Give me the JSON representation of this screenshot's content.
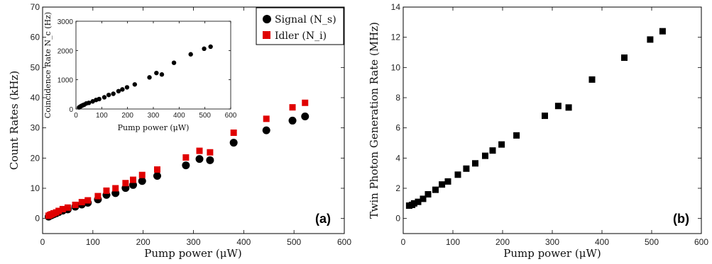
{
  "chart_data": [
    {
      "type": "scatter",
      "panel_label": "(a)",
      "xlabel": "Pump power (μW)",
      "ylabel": "Count Rates (kHz)",
      "xlim": [
        0,
        600
      ],
      "ylim": [
        -5,
        70
      ],
      "xticks": [
        0,
        100,
        200,
        300,
        400,
        500,
        600
      ],
      "yticks": [
        0,
        10,
        20,
        30,
        40,
        50,
        60,
        70
      ],
      "legend_position": "top-right",
      "series": [
        {
          "name": "Signal (N_s)",
          "marker": "circle",
          "color": "#000000",
          "x": [
            12,
            15,
            18,
            22,
            27,
            32,
            40,
            50,
            65,
            78,
            90,
            110,
            127,
            145,
            165,
            180,
            198,
            228,
            285,
            312,
            333,
            380,
            445,
            497,
            522
          ],
          "y": [
            0.6,
            0.9,
            1.1,
            1.4,
            1.7,
            2.1,
            2.6,
            3.0,
            3.9,
            4.6,
            5.2,
            6.3,
            7.8,
            8.4,
            10.1,
            11.1,
            12.4,
            14.1,
            17.6,
            19.7,
            19.3,
            25.1,
            29.2,
            32.4,
            33.8
          ]
        },
        {
          "name": "Idler (N_i)",
          "marker": "square",
          "color": "#e00000",
          "x": [
            12,
            15,
            18,
            22,
            27,
            32,
            40,
            50,
            65,
            78,
            90,
            110,
            127,
            145,
            165,
            180,
            198,
            228,
            285,
            312,
            333,
            380,
            445,
            497,
            522
          ],
          "y": [
            0.9,
            1.2,
            1.4,
            1.7,
            2.0,
            2.5,
            3.1,
            3.6,
            4.5,
            5.4,
            6.0,
            7.4,
            9.2,
            10.0,
            11.7,
            12.8,
            14.4,
            16.2,
            20.2,
            22.4,
            21.9,
            28.4,
            33.0,
            36.8,
            38.3
          ]
        }
      ],
      "inset": {
        "type": "scatter",
        "xlabel": "Pump power (μW)",
        "ylabel": "Coincidence Rate N_c (Hz)",
        "xlim": [
          0,
          600
        ],
        "ylim": [
          0,
          3000
        ],
        "xticks": [
          0,
          100,
          200,
          300,
          400,
          500,
          600
        ],
        "yticks": [
          0,
          1000,
          2000,
          3000
        ],
        "series": [
          {
            "marker": "circle",
            "color": "#000000",
            "x": [
              12,
              15,
              18,
              22,
              27,
              32,
              40,
              50,
              65,
              78,
              90,
              110,
              127,
              145,
              165,
              180,
              198,
              228,
              285,
              312,
              333,
              380,
              445,
              497,
              522
            ],
            "y": [
              55,
              70,
              90,
              110,
              130,
              150,
              190,
              210,
              260,
              310,
              340,
              400,
              480,
              520,
              610,
              670,
              740,
              840,
              1080,
              1230,
              1180,
              1580,
              1870,
              2060,
              2130
            ]
          }
        ]
      }
    },
    {
      "type": "scatter",
      "panel_label": "(b)",
      "xlabel": "Pump power (μW)",
      "ylabel": "Twin Photon Generation Rate (MHz)",
      "xlim": [
        0,
        600
      ],
      "ylim": [
        -1,
        14
      ],
      "xticks": [
        0,
        100,
        200,
        300,
        400,
        500,
        600
      ],
      "yticks": [
        0,
        2,
        4,
        6,
        8,
        10,
        12,
        14
      ],
      "series": [
        {
          "marker": "square",
          "color": "#000000",
          "x": [
            12,
            18,
            22,
            30,
            40,
            50,
            65,
            78,
            90,
            110,
            127,
            145,
            165,
            180,
            198,
            228,
            285,
            312,
            333,
            380,
            445,
            497,
            522
          ],
          "y": [
            0.85,
            0.9,
            1.0,
            1.1,
            1.3,
            1.6,
            1.9,
            2.25,
            2.45,
            2.9,
            3.3,
            3.65,
            4.15,
            4.5,
            4.9,
            5.5,
            6.8,
            7.45,
            7.35,
            9.2,
            10.65,
            11.85,
            12.4
          ]
        }
      ]
    }
  ]
}
